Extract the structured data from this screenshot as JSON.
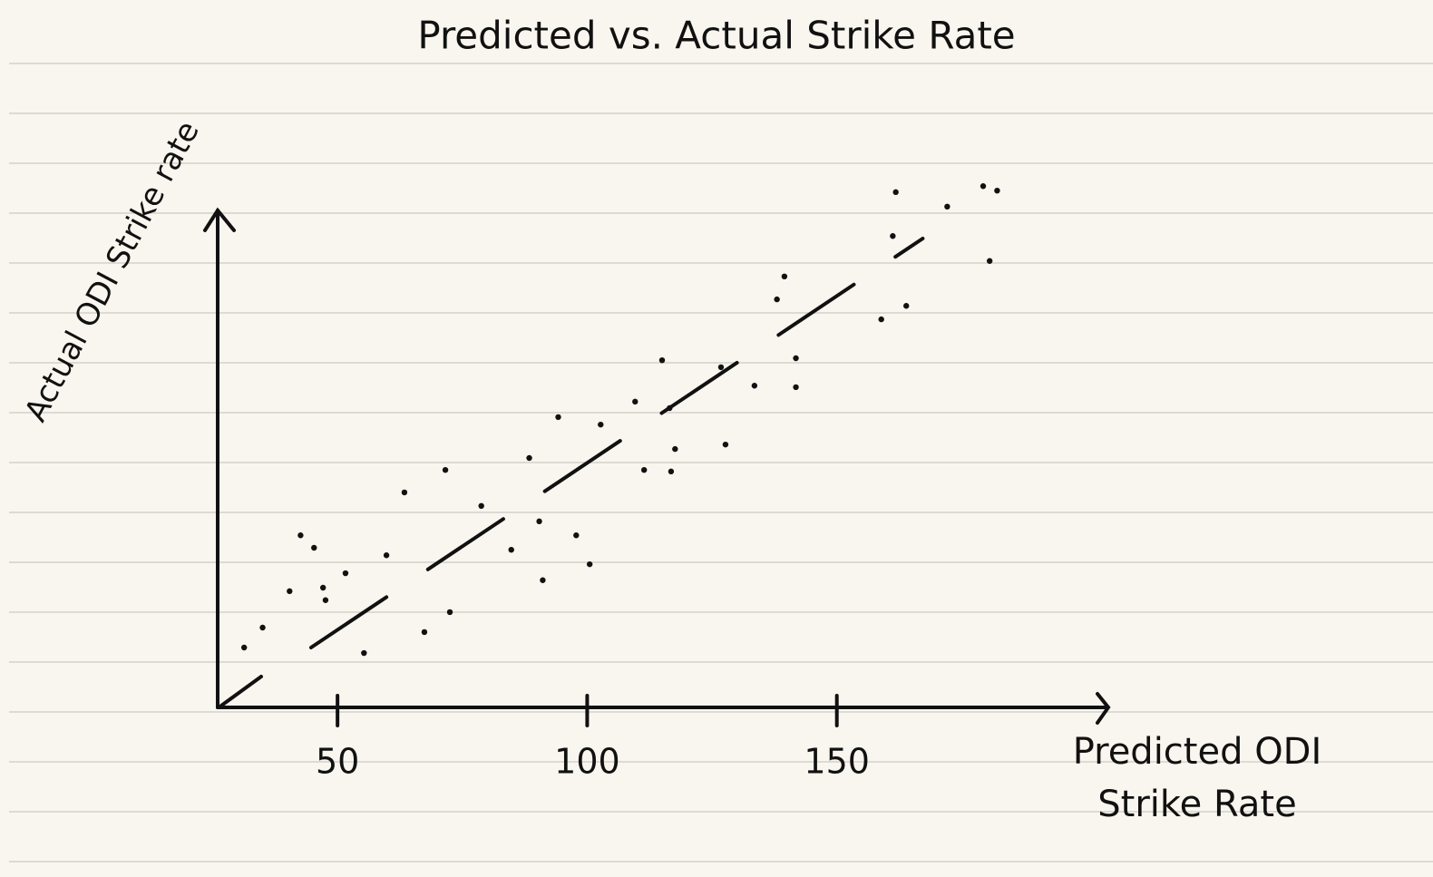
{
  "chart_data": {
    "type": "scatter",
    "title": "Predicted vs. Actual Strike Rate",
    "x_label": "Predicted ODI Strike Rate",
    "y_label": "Actual ODI Strike rate",
    "xlim": [
      26,
      204
    ],
    "ylim": [
      26,
      136
    ],
    "xticks": [
      50,
      100,
      150
    ],
    "color": "#111111",
    "x": [
      31.3,
      35.0,
      42.6,
      45.3,
      40.4,
      47.1,
      47.6,
      51.6,
      55.3,
      59.8,
      63.4,
      71.6,
      67.4,
      72.5,
      78.8,
      84.8,
      88.4,
      91.1,
      90.4,
      94.2,
      97.8,
      100.5,
      102.7,
      109.6,
      111.4,
      115.0,
      116.5,
      116.8,
      117.6,
      127.7,
      126.8,
      133.5,
      138.0,
      139.5,
      141.8,
      141.8,
      158.9,
      163.9,
      161.2,
      161.8,
      172.1,
      179.3,
      182.1,
      180.6
    ],
    "values": [
      38,
      42,
      60.5,
      58,
      49.3,
      50,
      47.5,
      52.9,
      36.9,
      56.5,
      69.1,
      73.6,
      41.1,
      45.1,
      66.4,
      57.6,
      76,
      51.5,
      63.3,
      84.2,
      60.5,
      54.7,
      82.7,
      87.3,
      73.6,
      95.6,
      86,
      73.3,
      77.8,
      78.7,
      94.2,
      90.5,
      107.8,
      112.4,
      96,
      90.2,
      103.8,
      106.5,
      120.5,
      129.3,
      126.4,
      130.5,
      129.6,
      115.5
    ],
    "trend": {
      "x": [
        44.7,
        167.2
      ],
      "values": [
        38,
        120
      ]
    }
  }
}
